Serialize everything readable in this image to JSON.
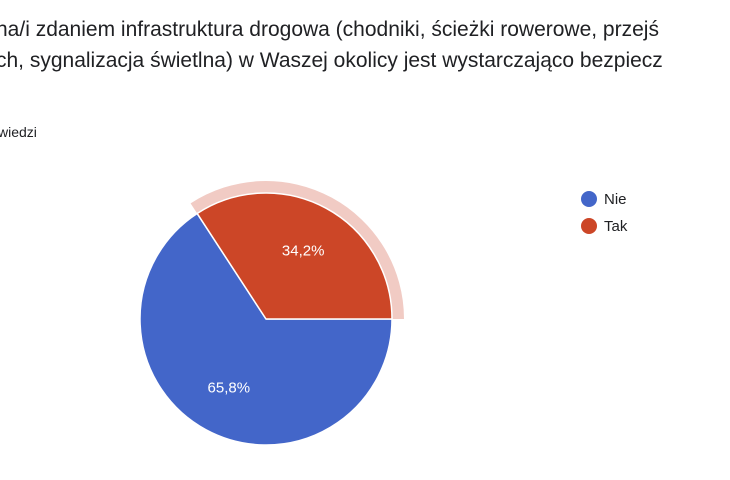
{
  "question": {
    "line1": "na/i zdaniem infrastruktura drogowa (chodniki, ścieżki rowerowe, przejś",
    "line2": "ch, sygnalizacja świetlna) w Waszej okolicy jest wystarczająco bezpiecz"
  },
  "response_count": "wiedzi",
  "chart_data": {
    "type": "pie",
    "title": "",
    "legend_position": "right",
    "slices": [
      {
        "name": "Nie",
        "value": 65.8,
        "label": "65,8%",
        "color": "#4366c9"
      },
      {
        "name": "Tak",
        "value": 34.2,
        "label": "34,2%",
        "color": "#cc4627",
        "highlighted": true
      }
    ],
    "highlight_color": "#f1cbc4"
  }
}
